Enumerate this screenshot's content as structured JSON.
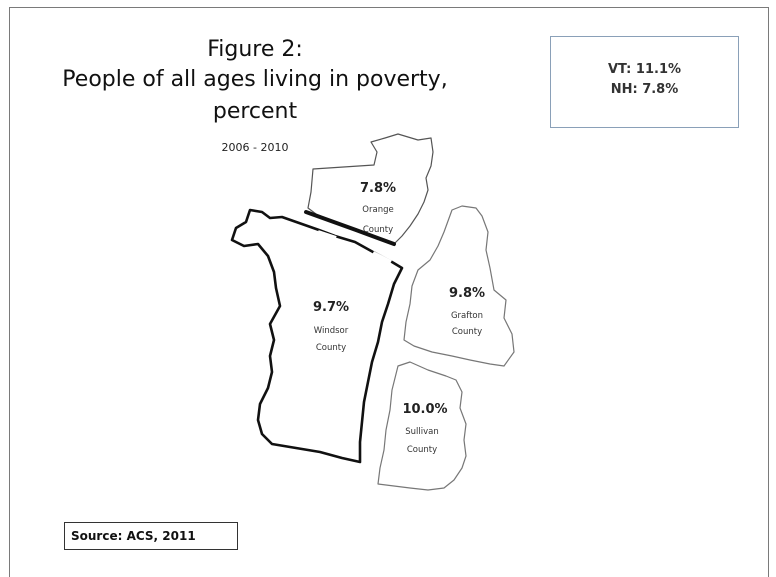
{
  "title": {
    "line1": "Figure 2:",
    "line2": "People of all ages living in poverty,",
    "line3": "percent"
  },
  "period": "2006 - 2010",
  "state_rates": {
    "vt": "VT: 11.1%",
    "nh": "NH: 7.8%"
  },
  "source": "Source: ACS, 2011",
  "counties": {
    "orange": {
      "value": "7.8%",
      "name_line1": "Orange",
      "name_line2": "County"
    },
    "windsor": {
      "value": "9.7%",
      "name_line1": "Windsor",
      "name_line2": "County"
    },
    "grafton": {
      "value": "9.8%",
      "name_line1": "Grafton",
      "name_line2": "County"
    },
    "sullivan": {
      "value": "10.0%",
      "name_line1": "Sullivan",
      "name_line2": "County"
    }
  }
}
